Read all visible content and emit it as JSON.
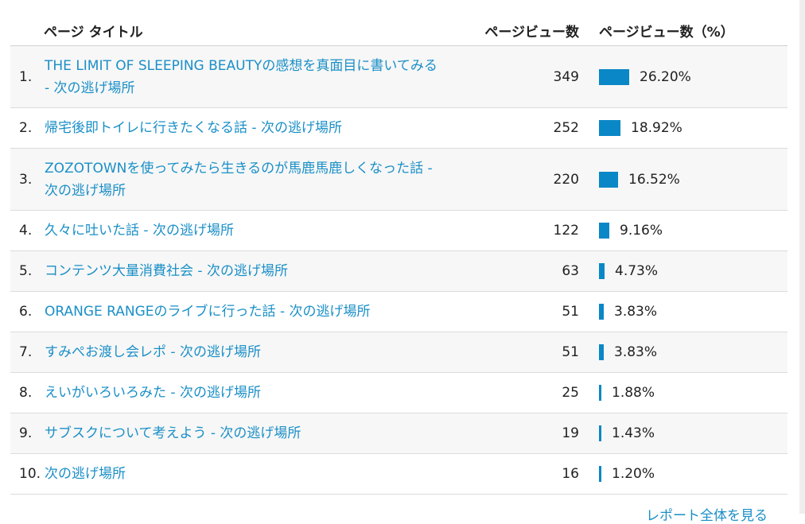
{
  "header": {
    "title_col": "ページ タイトル",
    "views_col": "ページビュー数",
    "pct_col": "ページビュー数（%）"
  },
  "rows": [
    {
      "rank": "1.",
      "title": "THE LIMIT OF SLEEPING BEAUTYの感想を真面目に書いてみる - 次の逃げ場所",
      "views": "349",
      "pct_label": "26.20%",
      "pct": 26.2
    },
    {
      "rank": "2.",
      "title": "帰宅後即トイレに行きたくなる話 - 次の逃げ場所",
      "views": "252",
      "pct_label": "18.92%",
      "pct": 18.92
    },
    {
      "rank": "3.",
      "title": "ZOZOTOWNを使ってみたら生きるのが馬鹿馬鹿しくなった話 - 次の逃げ場所",
      "views": "220",
      "pct_label": "16.52%",
      "pct": 16.52
    },
    {
      "rank": "4.",
      "title": "久々に吐いた話 - 次の逃げ場所",
      "views": "122",
      "pct_label": "9.16%",
      "pct": 9.16
    },
    {
      "rank": "5.",
      "title": "コンテンツ大量消費社会 - 次の逃げ場所",
      "views": "63",
      "pct_label": "4.73%",
      "pct": 4.73
    },
    {
      "rank": "6.",
      "title": "ORANGE RANGEのライブに行った話 - 次の逃げ場所",
      "views": "51",
      "pct_label": "3.83%",
      "pct": 3.83
    },
    {
      "rank": "7.",
      "title": "すみぺお渡し会レポ - 次の逃げ場所",
      "views": "51",
      "pct_label": "3.83%",
      "pct": 3.83
    },
    {
      "rank": "8.",
      "title": "えいがいろいろみた - 次の逃げ場所",
      "views": "25",
      "pct_label": "1.88%",
      "pct": 1.88
    },
    {
      "rank": "9.",
      "title": "サブスクについて考えよう - 次の逃げ場所",
      "views": "19",
      "pct_label": "1.43%",
      "pct": 1.43
    },
    {
      "rank": "10.",
      "title": "次の逃げ場所",
      "views": "16",
      "pct_label": "1.20%",
      "pct": 1.2
    }
  ],
  "footer": {
    "more_link": "レポート全体を見る"
  },
  "colors": {
    "bar": "#0a87c6",
    "link": "#1a8fc7"
  }
}
